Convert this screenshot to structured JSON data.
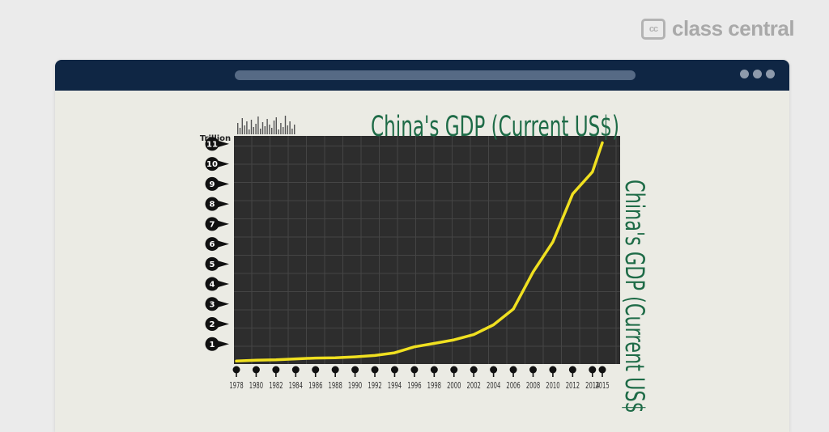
{
  "brand": {
    "icon": "cc-logo-icon",
    "icon_text": "cc",
    "name": "class central"
  },
  "window": {
    "dots": [
      "dot",
      "dot",
      "dot"
    ]
  },
  "colors": {
    "background": "#ebebeb",
    "titlebar": "#0f2644",
    "plot": "#2d2d2d",
    "line": "#f0e020",
    "title": "#1e6b47"
  },
  "chart_data": {
    "type": "line",
    "title": "China's GDP (Current US$)",
    "ylabel_right": "China's GDP (Current US$)",
    "unit_label": "Trillion",
    "x": [
      "1978",
      "1980",
      "1982",
      "1984",
      "1986",
      "1988",
      "1990",
      "1992",
      "1994",
      "1996",
      "1998",
      "2000",
      "2002",
      "2004",
      "2006",
      "2008",
      "2010",
      "2012",
      "2014",
      "2015"
    ],
    "series": [
      {
        "values": [
          0.15,
          0.19,
          0.21,
          0.26,
          0.3,
          0.31,
          0.36,
          0.43,
          0.56,
          0.86,
          1.03,
          1.21,
          1.47,
          1.96,
          2.75,
          4.6,
          6.1,
          8.5,
          9.6,
          11.06
        ]
      }
    ],
    "y_ticks": [
      1,
      2,
      3,
      4,
      5,
      6,
      7,
      8,
      9,
      10,
      11
    ],
    "ylim": [
      0,
      11.4
    ],
    "grid": true,
    "legend": "none"
  }
}
